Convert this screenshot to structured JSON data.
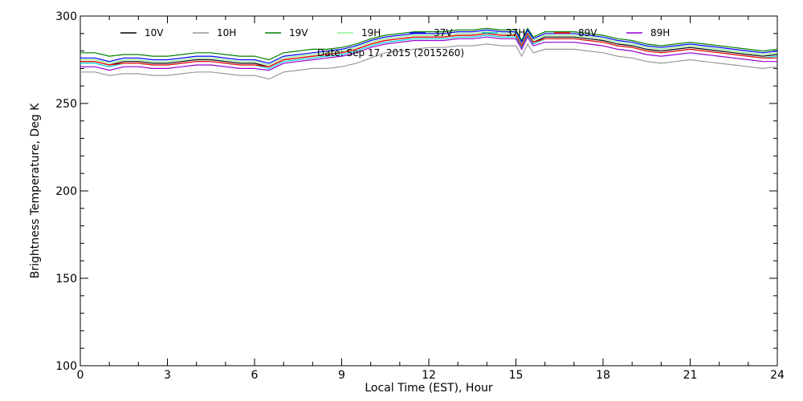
{
  "chart_data": {
    "type": "line",
    "title": "",
    "annotation": "Date: Sep 17, 2015 (2015260)",
    "xlabel": "Local Time (EST), Hour",
    "ylabel": "Brightness Temperature, Deg K",
    "xlim": [
      0,
      24
    ],
    "ylim": [
      100,
      300
    ],
    "xticks": [
      0,
      3,
      6,
      9,
      12,
      15,
      18,
      21,
      24
    ],
    "yticks": [
      100,
      150,
      200,
      250,
      300
    ],
    "grid": false,
    "legend_placement": "top",
    "x": [
      0,
      0.5,
      1,
      1.5,
      2,
      2.5,
      3,
      3.5,
      4,
      4.5,
      5,
      5.5,
      6,
      6.5,
      7,
      7.5,
      8,
      8.5,
      9,
      9.5,
      10,
      10.5,
      11,
      11.5,
      12,
      12.5,
      13,
      13.5,
      14,
      14.5,
      15,
      15.2,
      15.4,
      15.6,
      16,
      16.5,
      17,
      17.5,
      18,
      18.5,
      19,
      19.5,
      20,
      20.5,
      21,
      21.5,
      22,
      22.5,
      23,
      23.5,
      24
    ],
    "series": [
      {
        "name": "10V",
        "color": "#000000",
        "values": [
          274,
          274,
          272,
          274,
          274,
          273,
          273,
          274,
          275,
          275,
          274,
          273,
          273,
          271,
          275,
          276,
          277,
          278,
          279,
          281,
          284,
          286,
          287,
          288,
          288,
          288,
          289,
          289,
          290,
          289,
          289,
          283,
          290,
          285,
          288,
          288,
          288,
          287,
          286,
          284,
          283,
          281,
          280,
          281,
          282,
          281,
          280,
          279,
          278,
          277,
          278
        ]
      },
      {
        "name": "10H",
        "color": "#999999",
        "values": [
          268,
          268,
          266,
          267,
          267,
          266,
          266,
          267,
          268,
          268,
          267,
          266,
          266,
          264,
          268,
          269,
          270,
          270,
          271,
          273,
          276,
          279,
          280,
          281,
          282,
          282,
          283,
          283,
          284,
          283,
          283,
          277,
          284,
          279,
          281,
          281,
          281,
          280,
          279,
          277,
          276,
          274,
          273,
          274,
          275,
          274,
          273,
          272,
          271,
          270,
          271
        ]
      },
      {
        "name": "19V",
        "color": "#008000",
        "values": [
          279,
          279,
          277,
          278,
          278,
          277,
          277,
          278,
          279,
          279,
          278,
          277,
          277,
          275,
          279,
          280,
          281,
          281,
          282,
          284,
          287,
          289,
          290,
          291,
          291,
          291,
          292,
          292,
          293,
          292,
          292,
          286,
          293,
          288,
          291,
          291,
          291,
          290,
          289,
          287,
          286,
          284,
          283,
          284,
          285,
          284,
          283,
          282,
          281,
          280,
          281
        ]
      },
      {
        "name": "19H",
        "color": "#90ee90",
        "values": [
          275,
          275,
          273,
          275,
          275,
          274,
          274,
          275,
          276,
          276,
          275,
          274,
          274,
          272,
          276,
          277,
          278,
          279,
          280,
          282,
          285,
          287,
          288,
          289,
          289,
          289,
          290,
          290,
          291,
          290,
          290,
          284,
          291,
          286,
          289,
          289,
          289,
          288,
          287,
          285,
          284,
          282,
          281,
          282,
          283,
          282,
          281,
          280,
          279,
          278,
          279
        ]
      },
      {
        "name": "37V",
        "color": "#0000ff",
        "values": [
          276,
          276,
          274,
          276,
          276,
          275,
          275,
          276,
          277,
          277,
          276,
          275,
          275,
          273,
          277,
          278,
          279,
          280,
          281,
          283,
          286,
          288,
          289,
          290,
          290,
          290,
          291,
          291,
          292,
          291,
          291,
          285,
          292,
          287,
          290,
          290,
          290,
          289,
          288,
          286,
          285,
          283,
          282,
          283,
          284,
          283,
          282,
          281,
          280,
          279,
          280
        ]
      },
      {
        "name": "37H",
        "color": "#00ced1",
        "values": [
          273,
          273,
          271,
          273,
          273,
          272,
          272,
          273,
          274,
          274,
          273,
          272,
          272,
          270,
          274,
          275,
          276,
          277,
          278,
          280,
          283,
          285,
          286,
          287,
          287,
          287,
          288,
          288,
          289,
          288,
          288,
          282,
          289,
          284,
          287,
          287,
          287,
          286,
          285,
          283,
          282,
          280,
          279,
          280,
          281,
          280,
          279,
          278,
          277,
          276,
          277
        ]
      },
      {
        "name": "89V",
        "color": "#ff0000",
        "values": [
          274,
          274,
          272,
          273,
          273,
          272,
          272,
          273,
          274,
          274,
          273,
          272,
          272,
          271,
          275,
          276,
          277,
          278,
          279,
          281,
          284,
          286,
          287,
          288,
          288,
          288,
          289,
          289,
          290,
          289,
          289,
          283,
          290,
          285,
          287,
          287,
          287,
          286,
          285,
          283,
          282,
          280,
          279,
          280,
          281,
          280,
          279,
          278,
          277,
          276,
          276
        ]
      },
      {
        "name": "89H",
        "color": "#9400d3",
        "values": [
          271,
          271,
          269,
          271,
          271,
          270,
          270,
          271,
          272,
          272,
          271,
          270,
          270,
          269,
          273,
          274,
          275,
          276,
          277,
          279,
          282,
          284,
          285,
          286,
          286,
          286,
          287,
          287,
          288,
          287,
          287,
          281,
          288,
          283,
          285,
          285,
          285,
          284,
          283,
          281,
          280,
          278,
          277,
          278,
          279,
          278,
          277,
          276,
          275,
          274,
          274
        ]
      }
    ]
  }
}
